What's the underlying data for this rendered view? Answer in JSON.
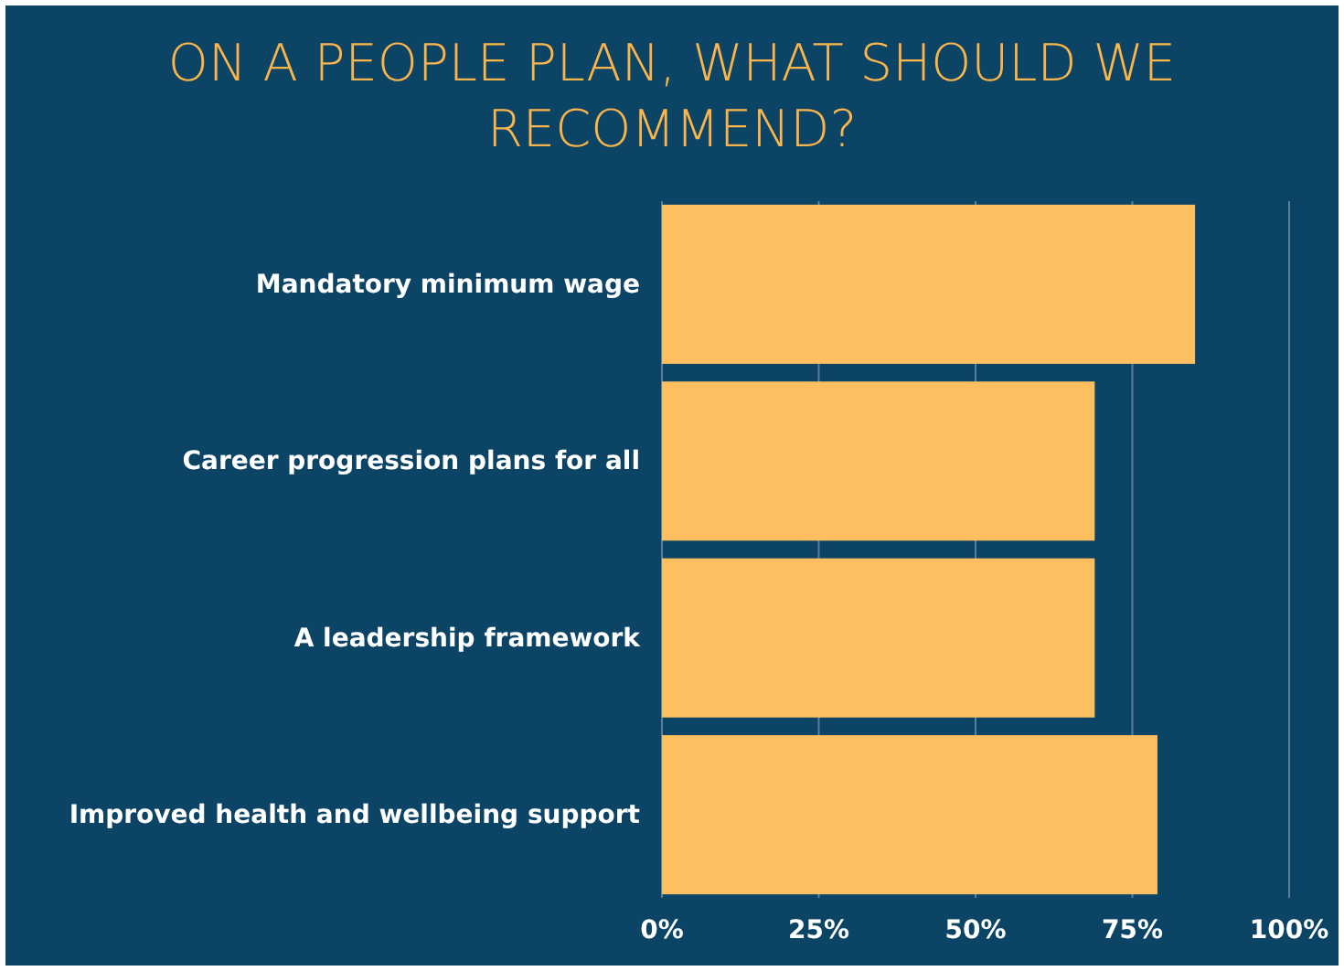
{
  "chart_data": {
    "type": "bar",
    "orientation": "horizontal",
    "title": "ON A PEOPLE PLAN, WHAT SHOULD WE RECOMMEND?",
    "categories": [
      "Mandatory minimum wage",
      "Career progression plans for all",
      "A leadership framework",
      "Improved health and wellbeing support"
    ],
    "values": [
      85,
      69,
      69,
      79
    ],
    "color": "#fdbf5f",
    "xlim": [
      0,
      100
    ],
    "xticks": [
      {
        "value": 0,
        "label": "0%"
      },
      {
        "value": 25,
        "label": "25%"
      },
      {
        "value": 50,
        "label": "50%"
      },
      {
        "value": 75,
        "label": "75%"
      },
      {
        "value": 100,
        "label": "100%"
      }
    ],
    "grid": "x"
  }
}
